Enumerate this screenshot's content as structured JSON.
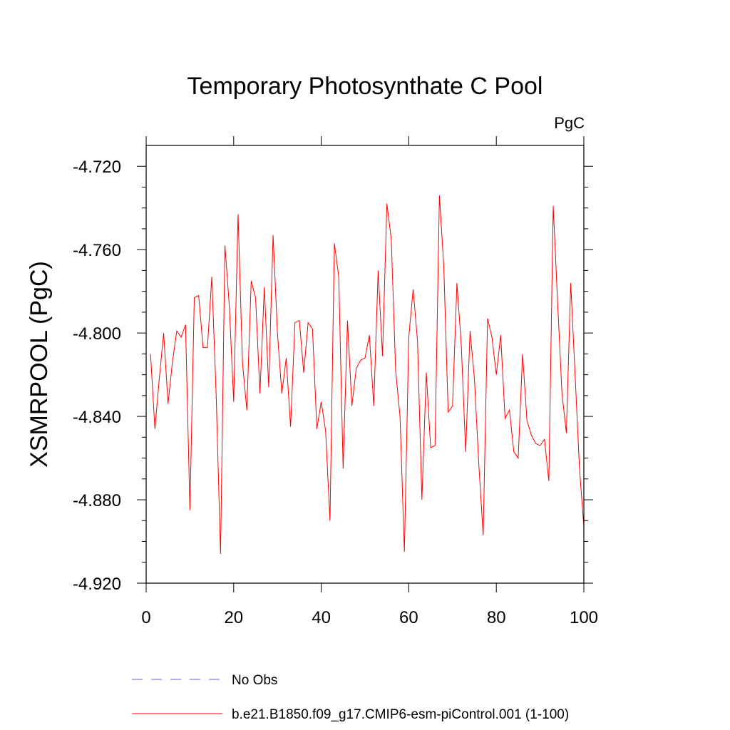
{
  "chart_data": {
    "type": "line",
    "title": "Temporary Photosynthate C Pool",
    "units_label": "PgC",
    "ylabel": "XSMRPOOL  (PgC)",
    "xlabel": "",
    "xlim": [
      0,
      100
    ],
    "ylim": [
      -4.92,
      -4.71
    ],
    "xticks": [
      0,
      20,
      40,
      60,
      80,
      100
    ],
    "xtick_labels": [
      "0",
      "20",
      "40",
      "60",
      "80",
      "100"
    ],
    "yticks": [
      -4.92,
      -4.88,
      -4.84,
      -4.8,
      -4.76,
      -4.72
    ],
    "ytick_labels": [
      "-4.920",
      "-4.880",
      "-4.840",
      "-4.800",
      "-4.760",
      "-4.720"
    ],
    "grid": false,
    "legend": [
      {
        "label": "No Obs",
        "color": "#6a5acd",
        "style": "dashed"
      },
      {
        "label": "b.e21.B1850.f09_g17.CMIP6-esm-piControl.001 (1-100)",
        "color": "#ff0000",
        "style": "solid"
      }
    ],
    "series": [
      {
        "name": "b.e21.B1850.f09_g17.CMIP6-esm-piControl.001 (1-100)",
        "color": "#ff0000",
        "x": [
          1,
          2,
          3,
          4,
          5,
          6,
          7,
          8,
          9,
          10,
          11,
          12,
          13,
          14,
          15,
          16,
          17,
          18,
          19,
          20,
          21,
          22,
          23,
          24,
          25,
          26,
          27,
          28,
          29,
          30,
          31,
          32,
          33,
          34,
          35,
          36,
          37,
          38,
          39,
          40,
          41,
          42,
          43,
          44,
          45,
          46,
          47,
          48,
          49,
          50,
          51,
          52,
          53,
          54,
          55,
          56,
          57,
          58,
          59,
          60,
          61,
          62,
          63,
          64,
          65,
          66,
          67,
          68,
          69,
          70,
          71,
          72,
          73,
          74,
          75,
          76,
          77,
          78,
          79,
          80,
          81,
          82,
          83,
          84,
          85,
          86,
          87,
          88,
          89,
          90,
          91,
          92,
          93,
          94,
          95,
          96,
          97,
          98,
          99,
          100
        ],
        "values": [
          -4.81,
          -4.846,
          -4.822,
          -4.8,
          -4.834,
          -4.814,
          -4.799,
          -4.802,
          -4.796,
          -4.885,
          -4.783,
          -4.782,
          -4.807,
          -4.807,
          -4.773,
          -4.83,
          -4.906,
          -4.758,
          -4.787,
          -4.833,
          -4.743,
          -4.814,
          -4.837,
          -4.775,
          -4.783,
          -4.829,
          -4.778,
          -4.826,
          -4.753,
          -4.8,
          -4.829,
          -4.812,
          -4.845,
          -4.795,
          -4.794,
          -4.819,
          -4.795,
          -4.798,
          -4.846,
          -4.833,
          -4.847,
          -4.89,
          -4.757,
          -4.773,
          -4.865,
          -4.794,
          -4.835,
          -4.817,
          -4.813,
          -4.812,
          -4.801,
          -4.835,
          -4.77,
          -4.811,
          -4.738,
          -4.755,
          -4.818,
          -4.84,
          -4.905,
          -4.802,
          -4.779,
          -4.804,
          -4.88,
          -4.819,
          -4.855,
          -4.854,
          -4.734,
          -4.768,
          -4.838,
          -4.835,
          -4.776,
          -4.806,
          -4.857,
          -4.799,
          -4.822,
          -4.863,
          -4.897,
          -4.793,
          -4.802,
          -4.82,
          -4.801,
          -4.841,
          -4.837,
          -4.857,
          -4.86,
          -4.81,
          -4.842,
          -4.849,
          -4.853,
          -4.854,
          -4.851,
          -4.871,
          -4.739,
          -4.785,
          -4.829,
          -4.848,
          -4.776,
          -4.82,
          -4.865,
          -4.893
        ]
      },
      {
        "name": "No Obs",
        "color": "#6a5acd",
        "x": [],
        "values": []
      }
    ]
  }
}
